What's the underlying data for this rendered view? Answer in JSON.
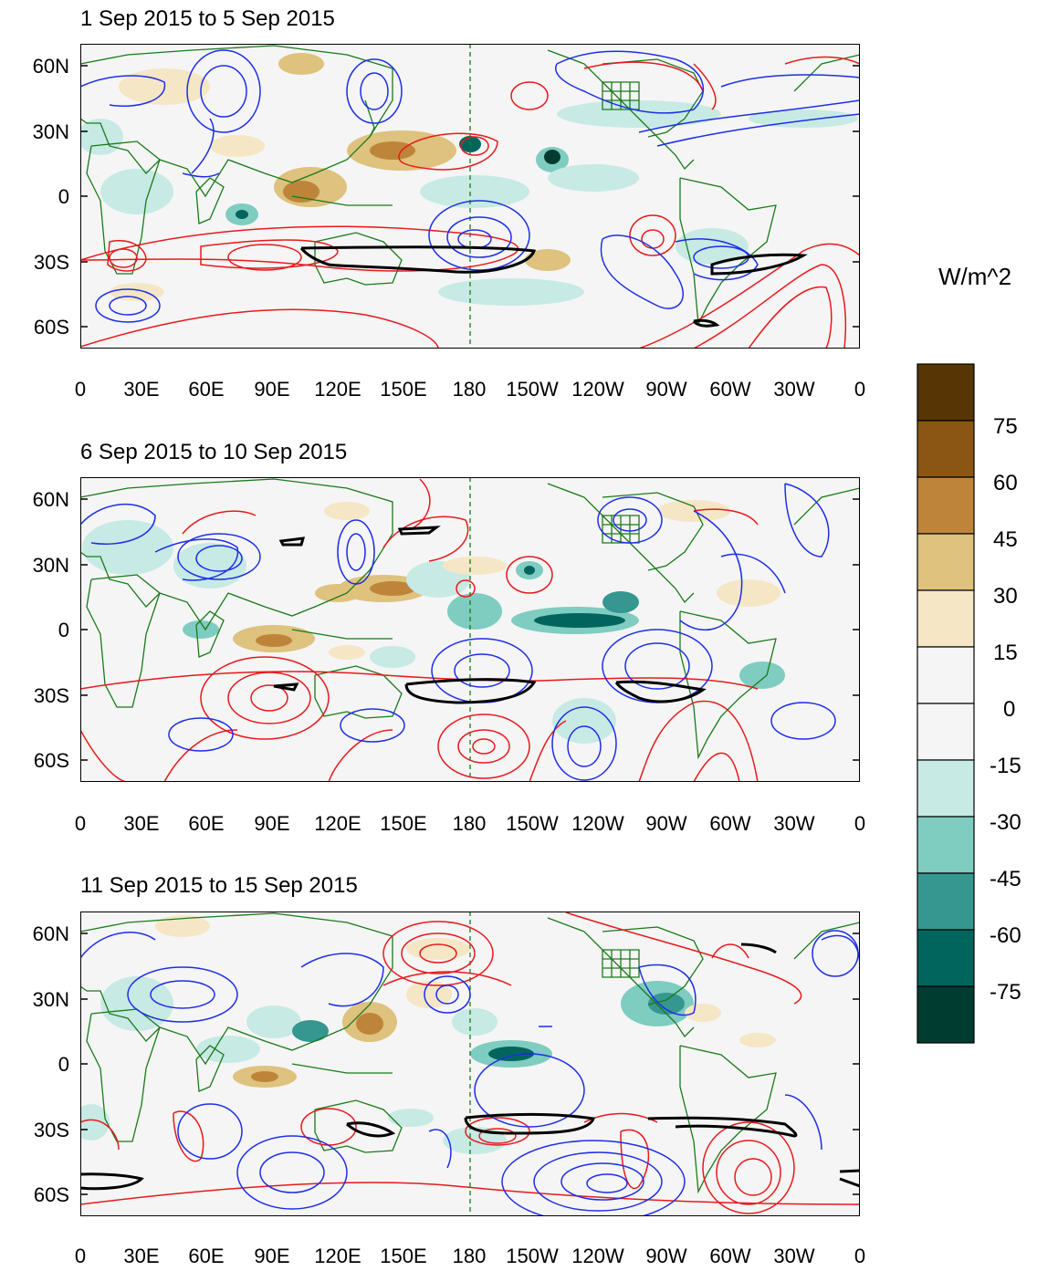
{
  "figure": {
    "units_label": "W/m^2",
    "panels": [
      {
        "title": "1 Sep 2015 to 5 Sep 2015"
      },
      {
        "title": "6 Sep 2015 to 10 Sep 2015"
      },
      {
        "title": "11 Sep 2015 to 15 Sep 2015"
      }
    ],
    "lat_ticks": [
      "60N",
      "30N",
      "0",
      "30S",
      "60S"
    ],
    "lon_ticks": [
      "0",
      "30E",
      "60E",
      "90E",
      "120E",
      "150E",
      "180",
      "150W",
      "120W",
      "90W",
      "60W",
      "30W",
      "0"
    ],
    "colorbar": {
      "labels": [
        "75",
        "60",
        "45",
        "30",
        "15",
        "0",
        "-15",
        "-30",
        "-45",
        "-60",
        "-75"
      ],
      "colors": [
        "#573505",
        "#8b5513",
        "#be853a",
        "#dec27d",
        "#f5e7c5",
        "#f5f5f5",
        "#f5f5f5",
        "#c7eae5",
        "#7fccc0",
        "#35978f",
        "#01655e",
        "#003c30"
      ]
    },
    "line_colors": {
      "positive": "#e8191c",
      "negative": "#1d2ee8",
      "thick": "#000000",
      "coast": "#1a7a1a"
    }
  }
}
